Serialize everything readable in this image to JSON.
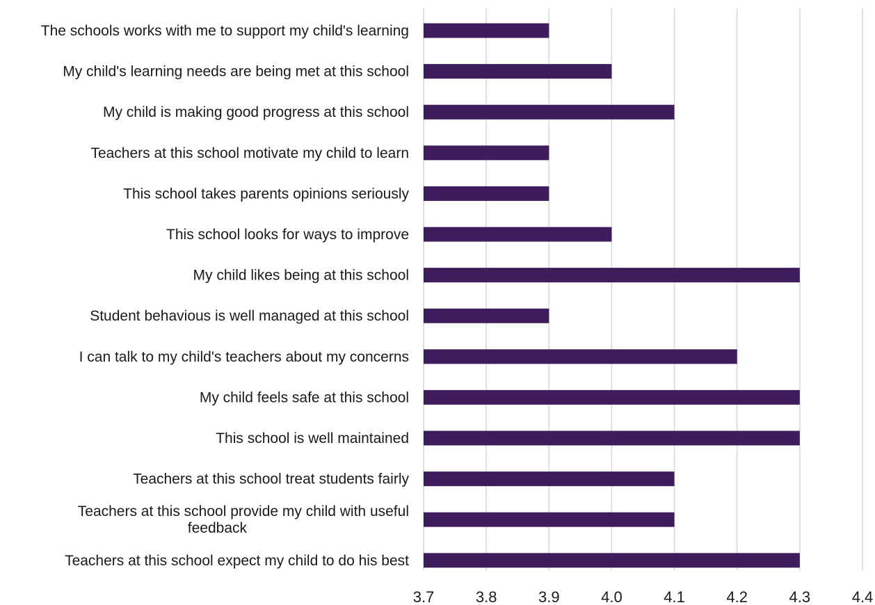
{
  "chart_data": {
    "type": "bar",
    "orientation": "horizontal",
    "categories": [
      "The schools works with me to support my child's learning",
      "My child's learning needs are being met at this school",
      "My child is making good progress at this school",
      "Teachers at this school motivate my child to learn",
      "This school takes parents opinions seriously",
      "This school looks for ways to improve",
      "My child likes being at this school",
      "Student behavious is well managed at this school",
      "I can talk to my child's teachers about my concerns",
      "My child feels safe at this school",
      "This school is well maintained",
      "Teachers at this school treat students fairly",
      "Teachers at this school provide my child with useful feedback",
      "Teachers at this school expect my child to do his best"
    ],
    "category_lines": [
      [
        "The schools works with me to support my child's learning"
      ],
      [
        "My child's learning needs are being met at this school"
      ],
      [
        "My child is making good progress at this school"
      ],
      [
        "Teachers at this school motivate my child to learn"
      ],
      [
        "This school takes parents opinions seriously"
      ],
      [
        "This school looks for ways to improve"
      ],
      [
        "My child likes being at this school"
      ],
      [
        "Student behavious is well managed at this school"
      ],
      [
        "I can talk to my child's teachers about my concerns"
      ],
      [
        "My child feels safe at this school"
      ],
      [
        "This school is well maintained"
      ],
      [
        "Teachers at this school treat students fairly"
      ],
      [
        "Teachers at this school provide my child with useful",
        "feedback"
      ],
      [
        "Teachers at this school expect my child to do his best"
      ]
    ],
    "values": [
      3.9,
      4.0,
      4.1,
      3.9,
      3.9,
      4.0,
      4.3,
      3.9,
      4.2,
      4.3,
      4.3,
      4.1,
      4.1,
      4.3
    ],
    "xlim": [
      3.7,
      4.4
    ],
    "x_ticks": [
      "3.7",
      "3.8",
      "3.9",
      "4.0",
      "4.1",
      "4.2",
      "4.3",
      "4.4"
    ],
    "title": "",
    "xlabel": "",
    "ylabel": "",
    "grid": "vertical",
    "legend": "none",
    "bar_color": "#3f1d5c",
    "grid_color": "#d9d9d9"
  }
}
